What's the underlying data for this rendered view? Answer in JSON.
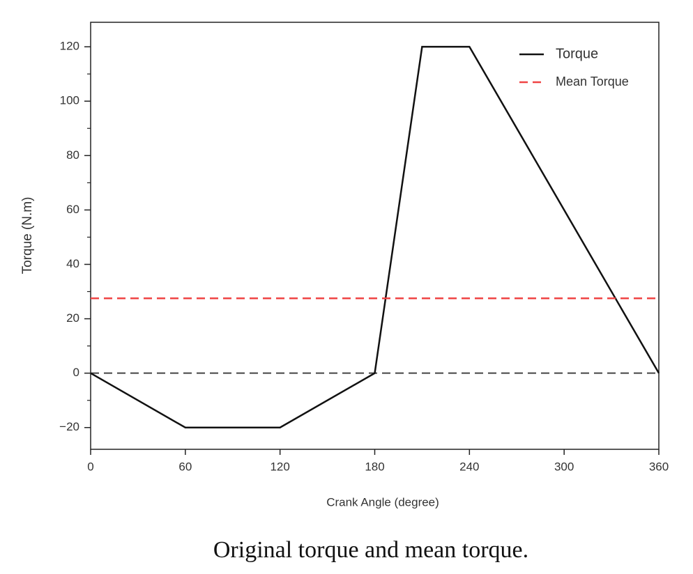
{
  "chart_data": {
    "type": "line",
    "x_label": "Crank Angle (degree)",
    "y_label": "Torque (N.m)",
    "caption": "Original torque and mean torque.",
    "series": [
      {
        "name": "Torque",
        "color": "#111111",
        "style": "solid",
        "x": [
          0,
          60,
          120,
          180,
          210,
          240,
          360
        ],
        "values": [
          0,
          -20,
          -20,
          0,
          120,
          120,
          0
        ]
      },
      {
        "name": "Mean Torque",
        "color": "#ef4444",
        "style": "dashed",
        "x": [
          0,
          360
        ],
        "values": [
          27.5,
          27.5
        ]
      }
    ],
    "reference_lines": [
      {
        "y": 0,
        "color": "#444444",
        "style": "dashed"
      }
    ],
    "xlim": [
      0,
      360
    ],
    "xticks": [
      0,
      60,
      120,
      180,
      240,
      300,
      360
    ],
    "ylim": [
      -28,
      129
    ],
    "yticks": [
      {
        "value": -20,
        "label": "−20"
      },
      0,
      20,
      40,
      60,
      80,
      100,
      120
    ],
    "yminorticks": [
      -10,
      10,
      30,
      50,
      70,
      90,
      110
    ],
    "grid": false,
    "legend": "upper right"
  }
}
